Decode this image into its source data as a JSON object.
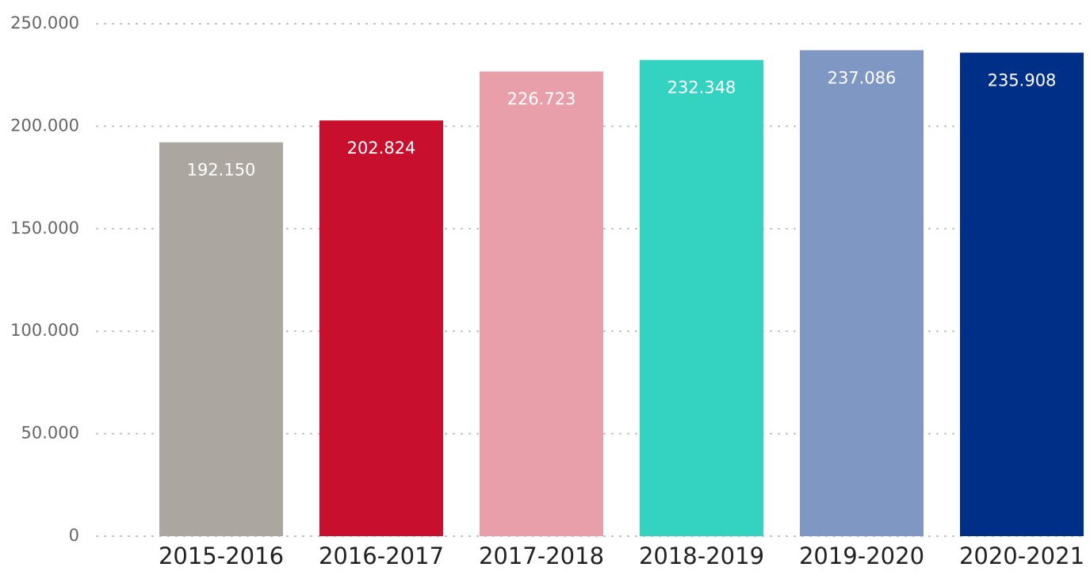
{
  "chart_data": {
    "type": "bar",
    "categories": [
      "2015-2016",
      "2016-2017",
      "2017-2018",
      "2018-2019",
      "2019-2020",
      "2020-2021"
    ],
    "values": [
      192150,
      202824,
      226723,
      232348,
      237086,
      235908
    ],
    "value_labels": [
      "192.150",
      "202.824",
      "226.723",
      "232.348",
      "237.086",
      "235.908"
    ],
    "colors": [
      "#aba7a0",
      "#c8102e",
      "#e89faa",
      "#34d3c1",
      "#7f98c3",
      "#002f87"
    ],
    "ylim": [
      0,
      250000
    ],
    "yticks": [
      0,
      {
        "value": 50000,
        "label": "50.000"
      },
      {
        "value": 100000,
        "label": "100.000"
      },
      {
        "value": 150000,
        "label": "150.000"
      },
      {
        "value": 200000,
        "label": "200.000"
      },
      {
        "value": 250000,
        "label": "250.000"
      }
    ],
    "grid": true
  }
}
